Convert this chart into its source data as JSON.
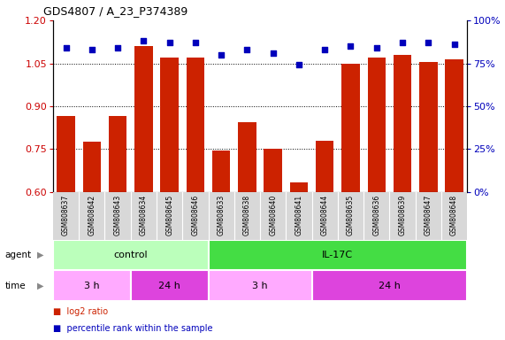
{
  "title": "GDS4807 / A_23_P374389",
  "samples": [
    "GSM808637",
    "GSM808642",
    "GSM808643",
    "GSM808634",
    "GSM808645",
    "GSM808646",
    "GSM808633",
    "GSM808638",
    "GSM808640",
    "GSM808641",
    "GSM808644",
    "GSM808635",
    "GSM808636",
    "GSM808639",
    "GSM808647",
    "GSM808648"
  ],
  "log2_ratio": [
    0.865,
    0.775,
    0.865,
    1.11,
    1.07,
    1.07,
    0.745,
    0.845,
    0.75,
    0.635,
    0.78,
    1.05,
    1.07,
    1.08,
    1.055,
    1.065
  ],
  "percentile": [
    84,
    83,
    84,
    88,
    87,
    87,
    80,
    83,
    81,
    74,
    83,
    85,
    84,
    87,
    87,
    86
  ],
  "ylim_left": [
    0.6,
    1.2
  ],
  "ylim_right": [
    0,
    100
  ],
  "yticks_left": [
    0.6,
    0.75,
    0.9,
    1.05,
    1.2
  ],
  "yticks_right": [
    0,
    25,
    50,
    75,
    100
  ],
  "bar_color": "#cc2200",
  "dot_color": "#0000bb",
  "agent_groups": [
    {
      "label": "control",
      "start": 0,
      "end": 6,
      "color": "#bbffbb"
    },
    {
      "label": "IL-17C",
      "start": 6,
      "end": 16,
      "color": "#44dd44"
    }
  ],
  "time_groups": [
    {
      "label": "3 h",
      "start": 0,
      "end": 3,
      "color": "#ffaaff"
    },
    {
      "label": "24 h",
      "start": 3,
      "end": 6,
      "color": "#dd44dd"
    },
    {
      "label": "3 h",
      "start": 6,
      "end": 10,
      "color": "#ffaaff"
    },
    {
      "label": "24 h",
      "start": 10,
      "end": 16,
      "color": "#dd44dd"
    }
  ],
  "legend_items": [
    {
      "label": "log2 ratio",
      "color": "#cc2200"
    },
    {
      "label": "percentile rank within the sample",
      "color": "#0000bb"
    }
  ],
  "bg_color": "#ffffff",
  "left_axis_color": "#cc0000",
  "right_axis_color": "#0000bb",
  "sample_bg_color": "#d8d8d8"
}
